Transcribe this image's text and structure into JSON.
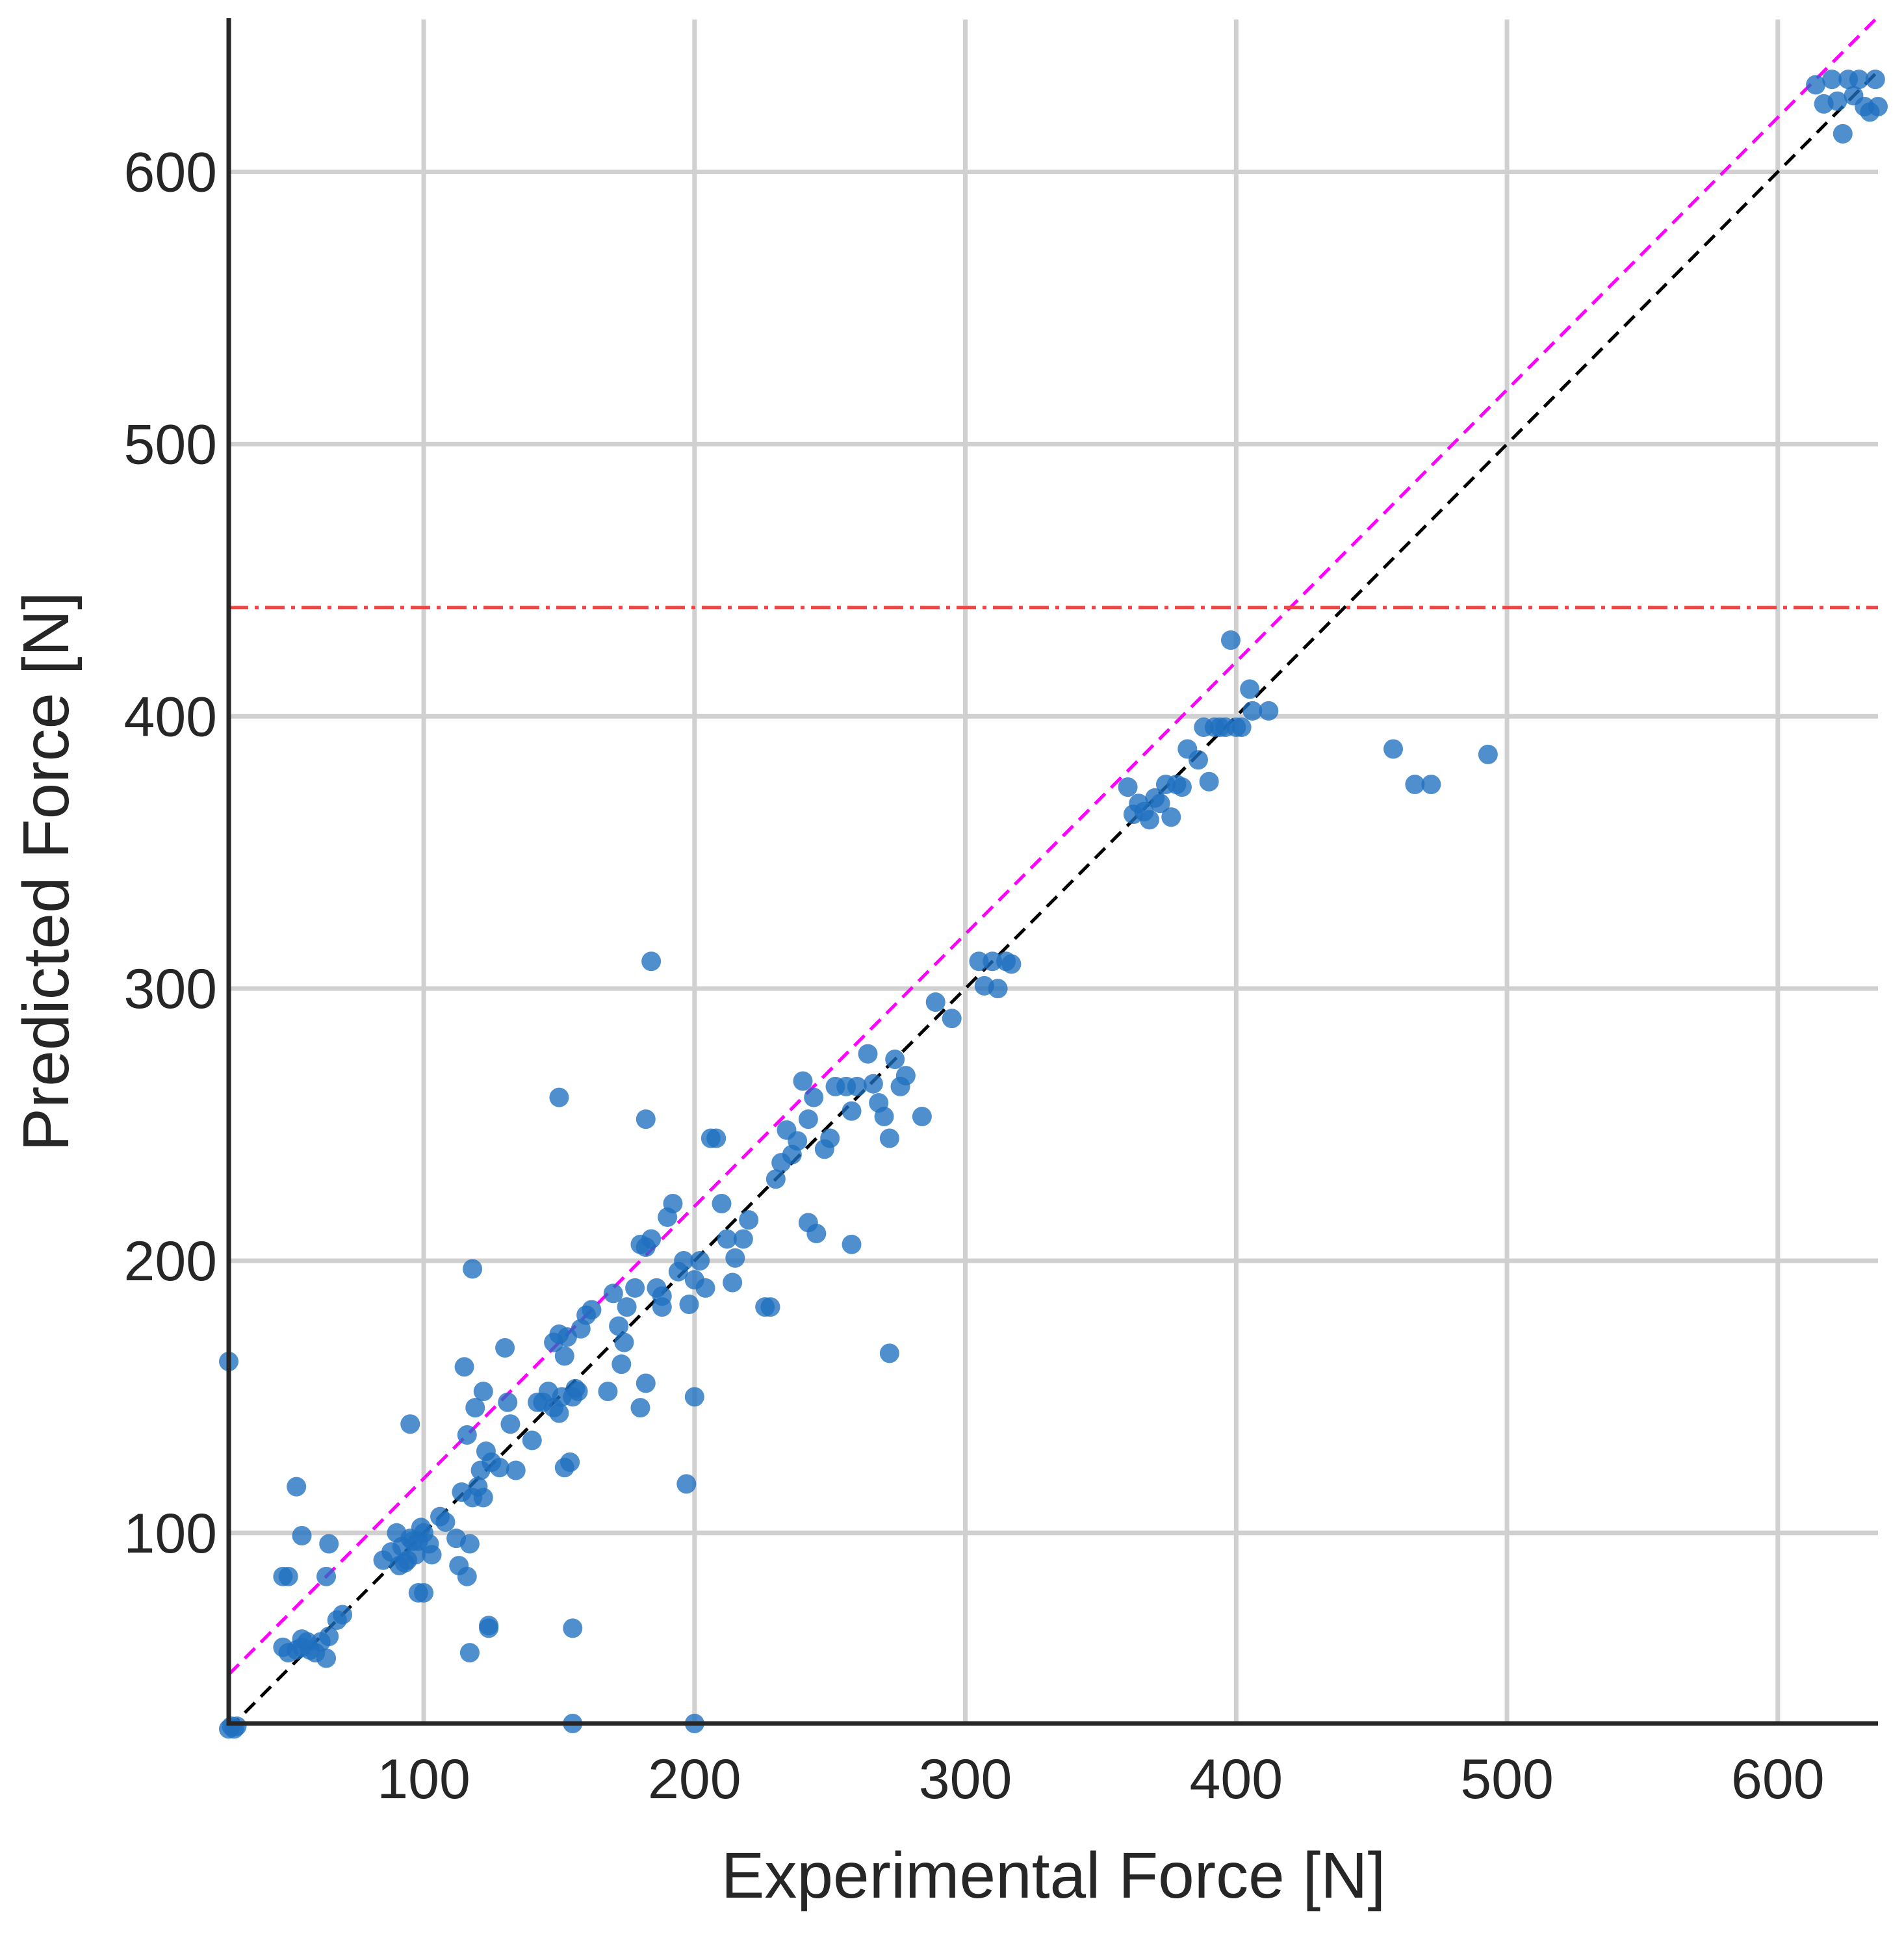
{
  "chart_data": {
    "type": "scatter",
    "title": "",
    "xlabel": "Experimental Force [N]",
    "ylabel": "Predicted Force [N]",
    "xlim": [
      28,
      637
    ],
    "ylim": [
      30,
      656
    ],
    "xticks": [
      100,
      200,
      300,
      400,
      500,
      600
    ],
    "yticks": [
      100,
      200,
      300,
      400,
      500,
      600
    ],
    "grid": true,
    "colors": {
      "points": "#1f6fbf",
      "identity_line": "#000000",
      "offset_line": "#ff00ff",
      "threshold_line": "#ee4444",
      "grid": "#d0d0d0",
      "axis": "#262626"
    },
    "reference_lines": [
      {
        "kind": "identity",
        "style": "dashed",
        "points": [
          [
            28,
            28
          ],
          [
            637,
            637
          ]
        ]
      },
      {
        "kind": "offset",
        "style": "dashed",
        "points": [
          [
            28,
            48
          ],
          [
            637,
            657
          ]
        ]
      },
      {
        "kind": "threshold",
        "style": "dash-dot",
        "points": [
          [
            28,
            440
          ],
          [
            637,
            440
          ]
        ]
      }
    ],
    "points": [
      [
        28,
        28
      ],
      [
        29,
        29
      ],
      [
        30,
        28
      ],
      [
        31,
        29
      ],
      [
        28,
        163
      ],
      [
        48,
        84
      ],
      [
        50,
        84
      ],
      [
        53,
        117
      ],
      [
        55,
        99
      ],
      [
        65,
        96
      ],
      [
        64,
        84
      ],
      [
        64,
        54
      ],
      [
        65,
        62
      ],
      [
        68,
        68
      ],
      [
        70,
        70
      ],
      [
        48,
        58
      ],
      [
        50,
        56
      ],
      [
        53,
        57
      ],
      [
        55,
        58
      ],
      [
        57,
        60
      ],
      [
        60,
        56
      ],
      [
        62,
        60
      ],
      [
        55,
        61
      ],
      [
        58,
        57
      ],
      [
        85,
        90
      ],
      [
        88,
        93
      ],
      [
        90,
        100
      ],
      [
        92,
        95
      ],
      [
        93,
        89
      ],
      [
        95,
        98
      ],
      [
        97,
        92
      ],
      [
        98,
        97
      ],
      [
        100,
        100
      ],
      [
        102,
        96
      ],
      [
        91,
        88
      ],
      [
        94,
        90
      ],
      [
        96,
        97
      ],
      [
        99,
        102
      ],
      [
        103,
        92
      ],
      [
        106,
        106
      ],
      [
        108,
        104
      ],
      [
        98,
        78
      ],
      [
        95,
        140
      ],
      [
        100,
        78
      ],
      [
        112,
        98
      ],
      [
        113,
        88
      ],
      [
        115,
        161
      ],
      [
        116,
        136
      ],
      [
        117,
        96
      ],
      [
        116,
        84
      ],
      [
        117,
        56
      ],
      [
        118,
        197
      ],
      [
        119,
        146
      ],
      [
        120,
        117
      ],
      [
        121,
        123
      ],
      [
        122,
        113
      ],
      [
        123,
        130
      ],
      [
        125,
        126
      ],
      [
        128,
        124
      ],
      [
        130,
        168
      ],
      [
        131,
        148
      ],
      [
        132,
        140
      ],
      [
        134,
        123
      ],
      [
        122,
        152
      ],
      [
        124,
        65
      ],
      [
        124,
        66
      ],
      [
        118,
        113
      ],
      [
        114,
        115
      ],
      [
        140,
        134
      ],
      [
        142,
        148
      ],
      [
        144,
        148
      ],
      [
        146,
        152
      ],
      [
        148,
        146
      ],
      [
        150,
        144
      ],
      [
        151,
        150
      ],
      [
        152,
        165
      ],
      [
        153,
        172
      ],
      [
        155,
        150
      ],
      [
        156,
        153
      ],
      [
        158,
        175
      ],
      [
        150,
        260
      ],
      [
        152,
        124
      ],
      [
        154,
        126
      ],
      [
        155,
        65
      ],
      [
        155,
        30
      ],
      [
        157,
        152
      ],
      [
        160,
        180
      ],
      [
        162,
        182
      ],
      [
        150,
        173
      ],
      [
        148,
        170
      ],
      [
        168,
        152
      ],
      [
        170,
        188
      ],
      [
        172,
        176
      ],
      [
        173,
        162
      ],
      [
        174,
        170
      ],
      [
        175,
        183
      ],
      [
        178,
        190
      ],
      [
        180,
        206
      ],
      [
        182,
        205
      ],
      [
        184,
        208
      ],
      [
        180,
        146
      ],
      [
        182,
        155
      ],
      [
        182,
        252
      ],
      [
        184,
        310
      ],
      [
        186,
        190
      ],
      [
        188,
        187
      ],
      [
        190,
        216
      ],
      [
        192,
        221
      ],
      [
        194,
        196
      ],
      [
        196,
        200
      ],
      [
        198,
        184
      ],
      [
        200,
        193
      ],
      [
        202,
        200
      ],
      [
        197,
        118
      ],
      [
        200,
        150
      ],
      [
        200,
        30
      ],
      [
        204,
        190
      ],
      [
        206,
        245
      ],
      [
        208,
        245
      ],
      [
        210,
        221
      ],
      [
        212,
        208
      ],
      [
        214,
        192
      ],
      [
        215,
        201
      ],
      [
        218,
        208
      ],
      [
        220,
        215
      ],
      [
        188,
        183
      ],
      [
        226,
        183
      ],
      [
        228,
        183
      ],
      [
        230,
        230
      ],
      [
        232,
        236
      ],
      [
        234,
        248
      ],
      [
        236,
        239
      ],
      [
        238,
        244
      ],
      [
        240,
        266
      ],
      [
        242,
        252
      ],
      [
        244,
        260
      ],
      [
        242,
        214
      ],
      [
        245,
        210
      ],
      [
        248,
        241
      ],
      [
        250,
        245
      ],
      [
        252,
        264
      ],
      [
        256,
        264
      ],
      [
        258,
        255
      ],
      [
        258,
        206
      ],
      [
        260,
        264
      ],
      [
        264,
        276
      ],
      [
        266,
        265
      ],
      [
        268,
        258
      ],
      [
        270,
        253
      ],
      [
        272,
        245
      ],
      [
        274,
        274
      ],
      [
        276,
        264
      ],
      [
        278,
        268
      ],
      [
        272,
        166
      ],
      [
        284,
        253
      ],
      [
        289,
        295
      ],
      [
        295,
        289
      ],
      [
        305,
        310
      ],
      [
        307,
        301
      ],
      [
        310,
        310
      ],
      [
        312,
        300
      ],
      [
        315,
        310
      ],
      [
        317,
        309
      ],
      [
        362,
        364
      ],
      [
        364,
        368
      ],
      [
        366,
        365
      ],
      [
        368,
        362
      ],
      [
        370,
        370
      ],
      [
        372,
        368
      ],
      [
        374,
        375
      ],
      [
        376,
        363
      ],
      [
        360,
        374
      ],
      [
        378,
        375
      ],
      [
        380,
        374
      ],
      [
        382,
        388
      ],
      [
        386,
        384
      ],
      [
        388,
        396
      ],
      [
        390,
        376
      ],
      [
        392,
        396
      ],
      [
        394,
        396
      ],
      [
        396,
        396
      ],
      [
        398,
        428
      ],
      [
        400,
        396
      ],
      [
        402,
        396
      ],
      [
        405,
        410
      ],
      [
        406,
        402
      ],
      [
        412,
        402
      ],
      [
        458,
        388
      ],
      [
        466,
        375
      ],
      [
        472,
        375
      ],
      [
        493,
        386
      ],
      [
        614,
        632
      ],
      [
        617,
        625
      ],
      [
        620,
        634
      ],
      [
        622,
        626
      ],
      [
        624,
        614
      ],
      [
        626,
        634
      ],
      [
        628,
        628
      ],
      [
        630,
        634
      ],
      [
        632,
        624
      ],
      [
        634,
        622
      ],
      [
        636,
        634
      ],
      [
        637,
        624
      ]
    ]
  }
}
